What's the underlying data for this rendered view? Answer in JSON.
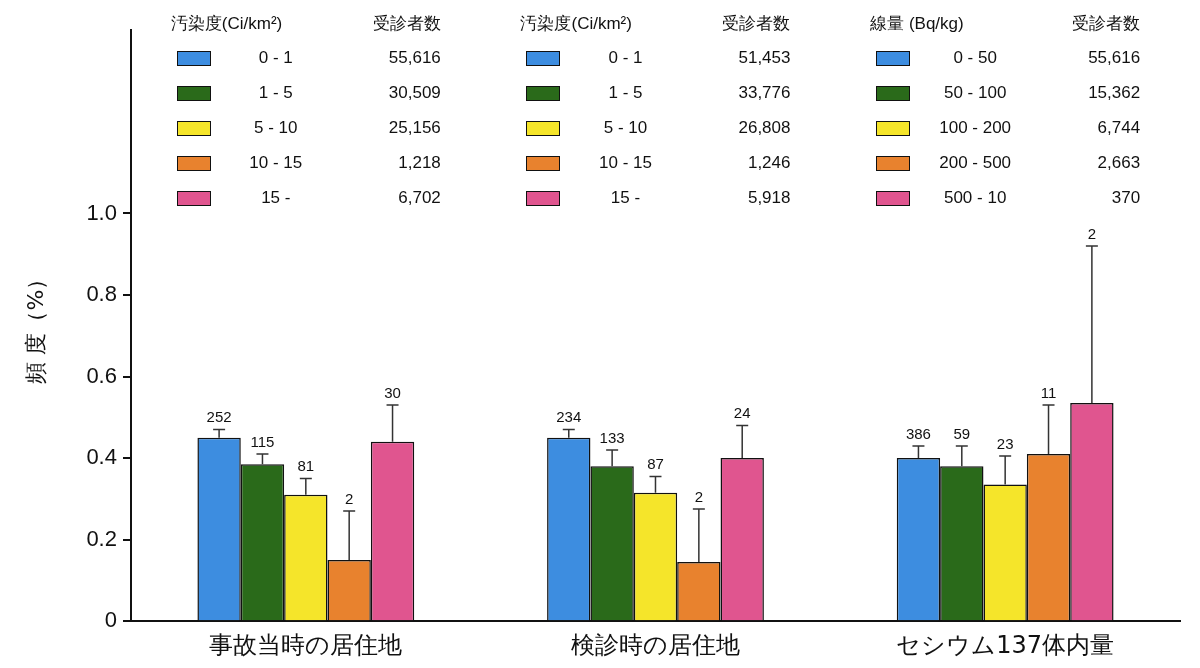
{
  "chart_data": {
    "type": "bar",
    "ylabel": "頻 度（%）",
    "categories": [
      "事故当時の居住地",
      "検診時の居住地",
      "セシウム137体内量"
    ],
    "series": [
      {
        "color": "#3d8de0",
        "values": [
          0.45,
          0.45,
          0.4
        ],
        "errors": [
          [
            0.45,
            0.47
          ],
          [
            0.45,
            0.47
          ],
          [
            0.4,
            0.43
          ]
        ]
      },
      {
        "color": "#2a6a1a",
        "values": [
          0.385,
          0.38,
          0.38
        ],
        "errors": [
          [
            0.385,
            0.41
          ],
          [
            0.38,
            0.42
          ],
          [
            0.38,
            0.43
          ]
        ]
      },
      {
        "color": "#f5e52a",
        "values": [
          0.31,
          0.315,
          0.335
        ],
        "errors": [
          [
            0.31,
            0.35
          ],
          [
            0.315,
            0.355
          ],
          [
            0.335,
            0.405
          ]
        ]
      },
      {
        "color": "#e8822e",
        "values": [
          0.15,
          0.145,
          0.41
        ],
        "errors": [
          [
            0.15,
            0.27
          ],
          [
            0.145,
            0.275
          ],
          [
            0.41,
            0.53
          ]
        ]
      },
      {
        "color": "#e0558f",
        "values": [
          0.44,
          0.4,
          0.535
        ],
        "errors": [
          [
            0.44,
            0.53
          ],
          [
            0.4,
            0.48
          ],
          [
            0.535,
            0.92
          ]
        ]
      }
    ],
    "ylim": [
      0,
      1.45
    ],
    "yticks": [
      0,
      0.2,
      0.4,
      0.6,
      0.8,
      {
        "value": 1,
        "label": "1.0"
      }
    ],
    "annotations": [
      "汚染度(Ci/km²)",
      "受診者数",
      "0 - 1",
      "55,616",
      "1 - 5",
      "30,509",
      "5 - 10",
      "25,156",
      "10 - 15",
      "1,218",
      "15 -",
      "6,702",
      "汚染度(Ci/km²)",
      "受診者数",
      "0 - 1",
      "51,453",
      "1 - 5",
      "33,776",
      "5 - 10",
      "26,808",
      "10 - 15",
      "1,246",
      "15 -",
      "5,918",
      "線量 (Bq/kg)",
      "受診者数",
      "0 - 50",
      "55,616",
      "50 - 100",
      "15,362",
      "100 - 200",
      "6,744",
      "200 - 500",
      "2,663",
      "500 - 10",
      "370",
      "252",
      "234",
      "386",
      "115",
      "133",
      "59",
      "81",
      "87",
      "23",
      "2",
      "2",
      "11",
      "30",
      "24",
      "2"
    ]
  }
}
